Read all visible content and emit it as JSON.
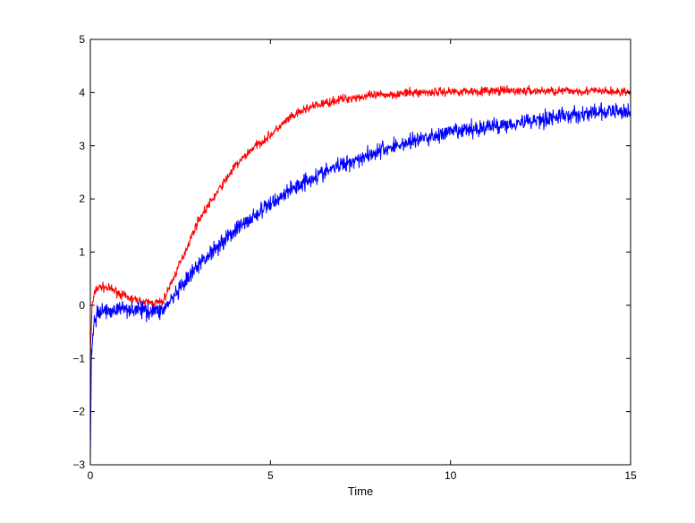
{
  "chart_data": {
    "type": "line",
    "title": "",
    "xlabel": "Time",
    "ylabel": "",
    "xlim": [
      0,
      15
    ],
    "ylim": [
      -3,
      5
    ],
    "xticks": [
      0,
      5,
      10,
      15
    ],
    "yticks": [
      -3,
      -2,
      -1,
      0,
      1,
      2,
      3,
      4,
      5
    ],
    "grid": false,
    "legend": "none",
    "series": [
      {
        "color": "#ff0000",
        "noise": 0.08,
        "x": [
          0,
          0.05,
          0.15,
          0.3,
          0.6,
          1.0,
          1.5,
          2.0,
          2.5,
          3.0,
          3.5,
          4.0,
          4.5,
          5.0,
          5.5,
          6.0,
          6.5,
          7.0,
          7.5,
          8.0,
          9.0,
          10.0,
          11.0,
          12.0,
          13.0,
          14.0,
          15.0
        ],
        "y": [
          -0.9,
          0.0,
          0.3,
          0.35,
          0.3,
          0.15,
          0.05,
          0.05,
          0.8,
          1.6,
          2.1,
          2.6,
          2.95,
          3.2,
          3.5,
          3.7,
          3.8,
          3.88,
          3.92,
          3.95,
          4.0,
          4.02,
          4.03,
          4.03,
          4.03,
          4.03,
          4.0
        ]
      },
      {
        "color": "#0000ff",
        "noise": 0.15,
        "x": [
          0,
          0.03,
          0.1,
          0.3,
          0.6,
          1.0,
          1.5,
          2.0,
          2.5,
          3.0,
          3.5,
          4.0,
          4.5,
          5.0,
          5.5,
          6.0,
          7.0,
          8.0,
          9.0,
          10.0,
          11.0,
          12.0,
          13.0,
          14.0,
          15.0
        ],
        "y": [
          -2.9,
          -0.9,
          -0.3,
          -0.1,
          -0.1,
          -0.05,
          -0.1,
          -0.1,
          0.3,
          0.75,
          1.1,
          1.4,
          1.65,
          1.9,
          2.15,
          2.35,
          2.65,
          2.9,
          3.1,
          3.25,
          3.35,
          3.45,
          3.55,
          3.62,
          3.65
        ]
      }
    ]
  }
}
